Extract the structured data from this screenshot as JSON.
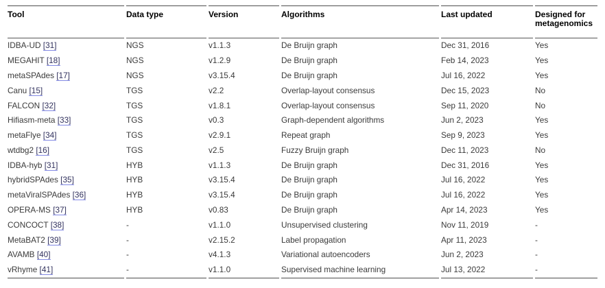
{
  "colors": {
    "rule_dark": "#4d4d4d",
    "rule_mid": "#555555",
    "body_text": "#3a3a3a",
    "header_text": "#000000",
    "citation_text": "#32325e",
    "citation_underline": "#8289e4"
  },
  "table": {
    "columns": [
      {
        "key": "tool",
        "label": "Tool"
      },
      {
        "key": "data_type",
        "label": "Data type"
      },
      {
        "key": "version",
        "label": "Version"
      },
      {
        "key": "algorithms",
        "label": "Algorithms"
      },
      {
        "key": "last_updated",
        "label": "Last updated"
      },
      {
        "key": "designed",
        "label": "Designed for metagenomics"
      }
    ],
    "rows": [
      {
        "tool": "IDBA-UD",
        "ref": "[31]",
        "data_type": "NGS",
        "version": "v1.1.3",
        "algorithms": "De Bruijn graph",
        "last_updated": "Dec 31, 2016",
        "designed": "Yes"
      },
      {
        "tool": "MEGAHIT",
        "ref": "[18]",
        "data_type": "NGS",
        "version": "v1.2.9",
        "algorithms": "De Bruijn graph",
        "last_updated": "Feb 14, 2023",
        "designed": "Yes"
      },
      {
        "tool": "metaSPAdes",
        "ref": "[17]",
        "data_type": "NGS",
        "version": "v3.15.4",
        "algorithms": "De Bruijn graph",
        "last_updated": "Jul 16, 2022",
        "designed": "Yes"
      },
      {
        "tool": "Canu",
        "ref": "[15]",
        "data_type": "TGS",
        "version": "v2.2",
        "algorithms": "Overlap-layout consensus",
        "last_updated": "Dec 15, 2023",
        "designed": "No"
      },
      {
        "tool": "FALCON",
        "ref": "[32]",
        "data_type": "TGS",
        "version": "v1.8.1",
        "algorithms": "Overlap-layout consensus",
        "last_updated": "Sep 11, 2020",
        "designed": "No"
      },
      {
        "tool": "Hifiasm-meta",
        "ref": "[33]",
        "data_type": "TGS",
        "version": "v0.3",
        "algorithms": "Graph-dependent algorithms",
        "last_updated": "Jun 2, 2023",
        "designed": "Yes"
      },
      {
        "tool": "metaFlye",
        "ref": "[34]",
        "data_type": "TGS",
        "version": "v2.9.1",
        "algorithms": "Repeat graph",
        "last_updated": "Sep 9, 2023",
        "designed": "Yes"
      },
      {
        "tool": "wtdbg2",
        "ref": "[16]",
        "data_type": "TGS",
        "version": "v2.5",
        "algorithms": "Fuzzy Bruijn graph",
        "last_updated": "Dec 11, 2023",
        "designed": "No"
      },
      {
        "tool": "IDBA-hyb",
        "ref": "[31]",
        "data_type": "HYB",
        "version": "v1.1.3",
        "algorithms": "De Bruijn graph",
        "last_updated": "Dec 31, 2016",
        "designed": "Yes"
      },
      {
        "tool": "hybridSPAdes",
        "ref": "[35]",
        "data_type": "HYB",
        "version": "v3.15.4",
        "algorithms": "De Bruijn graph",
        "last_updated": "Jul 16, 2022",
        "designed": "Yes"
      },
      {
        "tool": "metaViralSPAdes",
        "ref": "[36]",
        "data_type": "HYB",
        "version": "v3.15.4",
        "algorithms": "De Bruijn graph",
        "last_updated": "Jul 16, 2022",
        "designed": "Yes"
      },
      {
        "tool": "OPERA-MS",
        "ref": "[37]",
        "data_type": "HYB",
        "version": "v0.83",
        "algorithms": "De Bruijn graph",
        "last_updated": "Apr 14, 2023",
        "designed": "Yes"
      },
      {
        "tool": "CONCOCT",
        "ref": "[38]",
        "data_type": "-",
        "version": "v1.1.0",
        "algorithms": "Unsupervised clustering",
        "last_updated": "Nov 11, 2019",
        "designed": "-"
      },
      {
        "tool": "MetaBAT2",
        "ref": "[39]",
        "data_type": "-",
        "version": "v2.15.2",
        "algorithms": "Label propagation",
        "last_updated": "Apr 11, 2023",
        "designed": "-"
      },
      {
        "tool": "AVAMB",
        "ref": "[40]",
        "data_type": "-",
        "version": "v4.1.3",
        "algorithms": "Variational autoencoders",
        "last_updated": "Jun 2, 2023",
        "designed": "-"
      },
      {
        "tool": "vRhyme",
        "ref": "[41]",
        "data_type": "-",
        "version": "v1.1.0",
        "algorithms": "Supervised machine learning",
        "last_updated": "Jul 13, 2022",
        "designed": "-"
      }
    ]
  }
}
